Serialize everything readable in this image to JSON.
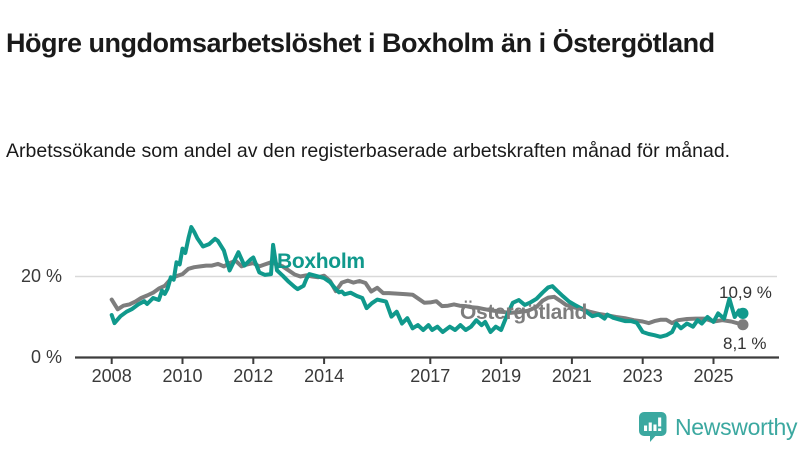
{
  "header": {
    "title": "Högre ungdomsarbetslöshet i Boxholm än i Östergötland",
    "subtitle": "Arbetssökande som andel av den registerbaserade arbetskraften månad för månad."
  },
  "chart_data": {
    "type": "line",
    "title": "Högre ungdomsarbetslöshet i Boxholm än i Östergötland",
    "subtitle": "Arbetssökande som andel av den registerbaserade arbetskraften månad för månad.",
    "x_unit": "year (monthly data)",
    "x_range": [
      2008.0,
      2025.83
    ],
    "ylim": [
      0,
      34
    ],
    "grid": "single horizontal gridline at 20%",
    "legend_position": "inline labels on lines",
    "y_ticks": [
      {
        "value": 20,
        "label": "20 %"
      },
      {
        "value": 0,
        "label": "0 %"
      }
    ],
    "x_ticks": [
      {
        "value": 2008,
        "label": "2008"
      },
      {
        "value": 2010,
        "label": "2010"
      },
      {
        "value": 2012,
        "label": "2012"
      },
      {
        "value": 2014,
        "label": "2014"
      },
      {
        "value": 2017,
        "label": "2017"
      },
      {
        "value": 2019,
        "label": "2019"
      },
      {
        "value": 2021,
        "label": "2021"
      },
      {
        "value": 2023,
        "label": "2023"
      },
      {
        "value": 2025,
        "label": "2025"
      }
    ],
    "series": [
      {
        "name": "Östergötland",
        "color": "#7d7d7d",
        "end_label": "8,1 %",
        "end_value": 8.1,
        "points": [
          [
            2008.0,
            14.3
          ],
          [
            2008.17,
            11.9
          ],
          [
            2008.33,
            12.8
          ],
          [
            2008.5,
            13.1
          ],
          [
            2008.67,
            13.8
          ],
          [
            2008.83,
            14.7
          ],
          [
            2009.0,
            15.3
          ],
          [
            2009.17,
            16.0
          ],
          [
            2009.33,
            17.0
          ],
          [
            2009.5,
            17.7
          ],
          [
            2009.67,
            19.4
          ],
          [
            2009.83,
            20.1
          ],
          [
            2010.0,
            20.6
          ],
          [
            2010.17,
            21.9
          ],
          [
            2010.33,
            22.3
          ],
          [
            2010.5,
            22.5
          ],
          [
            2010.67,
            22.7
          ],
          [
            2010.83,
            22.7
          ],
          [
            2011.0,
            23.1
          ],
          [
            2011.17,
            22.5
          ],
          [
            2011.33,
            23.3
          ],
          [
            2011.5,
            23.9
          ],
          [
            2011.67,
            22.5
          ],
          [
            2011.83,
            23.0
          ],
          [
            2012.0,
            23.3
          ],
          [
            2012.17,
            22.5
          ],
          [
            2012.33,
            23.0
          ],
          [
            2012.5,
            23.5
          ],
          [
            2012.67,
            23.0
          ],
          [
            2012.83,
            22.5
          ],
          [
            2013.0,
            21.5
          ],
          [
            2013.17,
            20.5
          ],
          [
            2013.33,
            20.0
          ],
          [
            2013.5,
            20.3
          ],
          [
            2013.67,
            20.0
          ],
          [
            2013.83,
            19.8
          ],
          [
            2014.0,
            20.2
          ],
          [
            2014.17,
            18.9
          ],
          [
            2014.33,
            16.4
          ],
          [
            2014.5,
            18.5
          ],
          [
            2014.67,
            19.0
          ],
          [
            2014.83,
            18.5
          ],
          [
            2015.0,
            18.9
          ],
          [
            2015.17,
            18.4
          ],
          [
            2015.33,
            16.3
          ],
          [
            2015.5,
            17.2
          ],
          [
            2015.67,
            15.9
          ],
          [
            2015.83,
            15.9
          ],
          [
            2016.0,
            15.8
          ],
          [
            2016.17,
            15.7
          ],
          [
            2016.33,
            15.6
          ],
          [
            2016.5,
            15.5
          ],
          [
            2016.67,
            14.5
          ],
          [
            2016.83,
            13.5
          ],
          [
            2017.0,
            13.6
          ],
          [
            2017.17,
            13.9
          ],
          [
            2017.33,
            12.7
          ],
          [
            2017.5,
            12.8
          ],
          [
            2017.67,
            13.1
          ],
          [
            2017.83,
            12.8
          ],
          [
            2018.0,
            12.7
          ],
          [
            2018.17,
            12.4
          ],
          [
            2018.33,
            12.3
          ],
          [
            2018.5,
            12.0
          ],
          [
            2018.67,
            11.7
          ],
          [
            2018.83,
            11.5
          ],
          [
            2019.0,
            11.3
          ],
          [
            2019.25,
            11.0
          ],
          [
            2019.5,
            11.2
          ],
          [
            2019.75,
            11.5
          ],
          [
            2020.0,
            12.5
          ],
          [
            2020.17,
            14.0
          ],
          [
            2020.33,
            14.8
          ],
          [
            2020.5,
            15.0
          ],
          [
            2020.67,
            14.0
          ],
          [
            2020.83,
            13.0
          ],
          [
            2021.0,
            12.5
          ],
          [
            2021.25,
            12.0
          ],
          [
            2021.5,
            11.3
          ],
          [
            2021.75,
            10.8
          ],
          [
            2022.0,
            10.4
          ],
          [
            2022.25,
            10.0
          ],
          [
            2022.5,
            9.7
          ],
          [
            2022.75,
            9.2
          ],
          [
            2023.0,
            8.9
          ],
          [
            2023.17,
            8.5
          ],
          [
            2023.33,
            9.0
          ],
          [
            2023.5,
            9.3
          ],
          [
            2023.67,
            9.3
          ],
          [
            2023.83,
            8.5
          ],
          [
            2024.0,
            9.2
          ],
          [
            2024.25,
            9.5
          ],
          [
            2024.5,
            9.6
          ],
          [
            2024.75,
            9.6
          ],
          [
            2025.0,
            8.9
          ],
          [
            2025.25,
            9.2
          ],
          [
            2025.5,
            8.9
          ],
          [
            2025.75,
            8.3
          ],
          [
            2025.83,
            8.1
          ]
        ]
      },
      {
        "name": "Boxholm",
        "color": "#10998c",
        "end_label": "10,9 %",
        "end_value": 10.9,
        "points": [
          [
            2008.0,
            10.5
          ],
          [
            2008.08,
            8.5
          ],
          [
            2008.25,
            10.2
          ],
          [
            2008.42,
            11.3
          ],
          [
            2008.58,
            12.0
          ],
          [
            2008.75,
            13.1
          ],
          [
            2008.92,
            13.9
          ],
          [
            2009.0,
            13.2
          ],
          [
            2009.17,
            14.7
          ],
          [
            2009.33,
            14.2
          ],
          [
            2009.42,
            16.5
          ],
          [
            2009.5,
            15.7
          ],
          [
            2009.58,
            17.0
          ],
          [
            2009.67,
            19.8
          ],
          [
            2009.75,
            19.2
          ],
          [
            2009.83,
            23.5
          ],
          [
            2009.92,
            23.0
          ],
          [
            2010.0,
            26.9
          ],
          [
            2010.08,
            25.8
          ],
          [
            2010.17,
            29.5
          ],
          [
            2010.25,
            32.2
          ],
          [
            2010.33,
            31.0
          ],
          [
            2010.42,
            29.4
          ],
          [
            2010.58,
            27.4
          ],
          [
            2010.75,
            28.0
          ],
          [
            2010.92,
            29.3
          ],
          [
            2011.0,
            28.8
          ],
          [
            2011.17,
            26.4
          ],
          [
            2011.33,
            21.5
          ],
          [
            2011.58,
            26.0
          ],
          [
            2011.75,
            22.7
          ],
          [
            2011.92,
            24.2
          ],
          [
            2012.0,
            24.7
          ],
          [
            2012.17,
            21.0
          ],
          [
            2012.33,
            20.4
          ],
          [
            2012.5,
            20.6
          ],
          [
            2012.56,
            27.8
          ],
          [
            2012.67,
            21.5
          ],
          [
            2012.83,
            20.2
          ],
          [
            2013.0,
            18.7
          ],
          [
            2013.17,
            17.4
          ],
          [
            2013.25,
            16.9
          ],
          [
            2013.42,
            17.7
          ],
          [
            2013.5,
            19.4
          ],
          [
            2013.58,
            20.6
          ],
          [
            2013.75,
            20.2
          ],
          [
            2013.92,
            19.8
          ],
          [
            2014.0,
            19.6
          ],
          [
            2014.17,
            18.6
          ],
          [
            2014.33,
            16.9
          ],
          [
            2014.42,
            16.1
          ],
          [
            2014.5,
            16.3
          ],
          [
            2014.58,
            15.6
          ],
          [
            2014.75,
            16.0
          ],
          [
            2014.92,
            15.2
          ],
          [
            2015.08,
            14.7
          ],
          [
            2015.2,
            12.2
          ],
          [
            2015.35,
            13.4
          ],
          [
            2015.5,
            14.3
          ],
          [
            2015.75,
            13.8
          ],
          [
            2015.9,
            10.1
          ],
          [
            2016.05,
            11.3
          ],
          [
            2016.2,
            8.4
          ],
          [
            2016.35,
            9.7
          ],
          [
            2016.5,
            7.2
          ],
          [
            2016.65,
            8.0
          ],
          [
            2016.8,
            6.8
          ],
          [
            2016.95,
            8.0
          ],
          [
            2017.05,
            6.8
          ],
          [
            2017.2,
            7.6
          ],
          [
            2017.35,
            6.3
          ],
          [
            2017.55,
            7.6
          ],
          [
            2017.7,
            6.8
          ],
          [
            2017.85,
            8.0
          ],
          [
            2018.0,
            6.8
          ],
          [
            2018.15,
            7.6
          ],
          [
            2018.3,
            9.2
          ],
          [
            2018.45,
            8.0
          ],
          [
            2018.55,
            8.8
          ],
          [
            2018.7,
            6.3
          ],
          [
            2018.85,
            7.6
          ],
          [
            2019.0,
            6.8
          ],
          [
            2019.17,
            10.5
          ],
          [
            2019.33,
            13.5
          ],
          [
            2019.5,
            14.2
          ],
          [
            2019.67,
            13.0
          ],
          [
            2019.83,
            13.6
          ],
          [
            2020.0,
            14.5
          ],
          [
            2020.17,
            16.0
          ],
          [
            2020.33,
            17.3
          ],
          [
            2020.45,
            17.6
          ],
          [
            2020.58,
            16.5
          ],
          [
            2020.75,
            15.1
          ],
          [
            2020.92,
            13.8
          ],
          [
            2021.08,
            13.0
          ],
          [
            2021.25,
            12.2
          ],
          [
            2021.42,
            11.2
          ],
          [
            2021.58,
            10.2
          ],
          [
            2021.75,
            10.6
          ],
          [
            2021.92,
            9.6
          ],
          [
            2022.0,
            10.6
          ],
          [
            2022.17,
            9.8
          ],
          [
            2022.33,
            9.4
          ],
          [
            2022.5,
            9.0
          ],
          [
            2022.67,
            9.0
          ],
          [
            2022.83,
            8.6
          ],
          [
            2023.0,
            6.3
          ],
          [
            2023.17,
            5.8
          ],
          [
            2023.33,
            5.5
          ],
          [
            2023.5,
            5.1
          ],
          [
            2023.67,
            5.5
          ],
          [
            2023.83,
            6.3
          ],
          [
            2023.95,
            8.4
          ],
          [
            2024.08,
            7.2
          ],
          [
            2024.25,
            8.4
          ],
          [
            2024.42,
            7.6
          ],
          [
            2024.55,
            9.2
          ],
          [
            2024.67,
            8.4
          ],
          [
            2024.83,
            10.0
          ],
          [
            2025.0,
            8.8
          ],
          [
            2025.13,
            10.9
          ],
          [
            2025.3,
            9.6
          ],
          [
            2025.45,
            14.5
          ],
          [
            2025.6,
            10.0
          ],
          [
            2025.72,
            11.6
          ],
          [
            2025.83,
            10.9
          ]
        ]
      }
    ],
    "colors": {
      "boxholm": "#10998c",
      "ostergotland": "#7d7d7d",
      "gridline": "#d9d9d9",
      "axis": "#3d3d3d",
      "tick_text": "#3a3a3a",
      "value_text": "#333333"
    }
  },
  "branding": {
    "logo_text": "Newsworthy",
    "logo_color": "#3ba8a0",
    "logo_icon": "speech-bubble-bar-chart-exclamation"
  }
}
